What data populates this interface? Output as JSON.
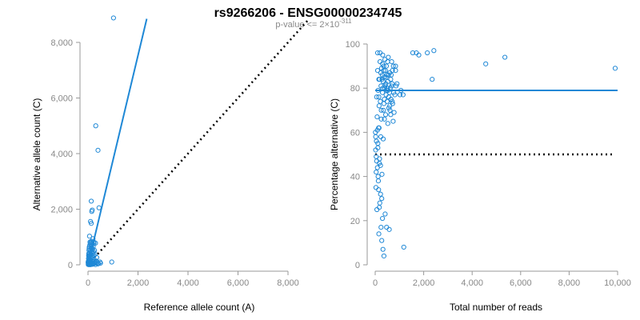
{
  "title": "rs9266206 - ENSG00000234745",
  "subtitle": {
    "prefix": "p-value <= 2×10",
    "exponent": "-311"
  },
  "colors": {
    "points": "#1f88d6",
    "fit": "#1f88d6",
    "reference": "#000000",
    "axis": "#999999",
    "ticklabel": "#888888"
  },
  "chart_data": [
    {
      "type": "scatter",
      "name": "left-panel",
      "xlabel": "Reference allele count (A)",
      "ylabel": "Alternative allele count (C)",
      "xlim": [
        0,
        8000
      ],
      "ylim": [
        0,
        8000
      ],
      "x_ticks": [
        0,
        2000,
        4000,
        6000,
        8000
      ],
      "y_ticks": [
        0,
        2000,
        4000,
        6000,
        8000
      ],
      "x_tick_labels": [
        "0",
        "2,000",
        "4,000",
        "6,000",
        "8,000"
      ],
      "y_tick_labels": [
        "0",
        "2,000",
        "4,000",
        "6,000",
        "8,000"
      ],
      "fit_line": {
        "x0": 0,
        "y0": 0,
        "x1": 2350,
        "y1": 8850
      },
      "reference_line": {
        "x0": 0,
        "y0": 0,
        "x1": 8850,
        "y1": 8850
      },
      "points": [
        [
          1020,
          8880
        ],
        [
          310,
          5000
        ],
        [
          400,
          4120
        ],
        [
          130,
          2290
        ],
        [
          440,
          2050
        ],
        [
          170,
          1970
        ],
        [
          150,
          1920
        ],
        [
          100,
          1560
        ],
        [
          130,
          1490
        ],
        [
          60,
          1030
        ],
        [
          200,
          940
        ],
        [
          140,
          850
        ],
        [
          80,
          820
        ],
        [
          110,
          800
        ],
        [
          230,
          820
        ],
        [
          170,
          790
        ],
        [
          240,
          780
        ],
        [
          300,
          780
        ],
        [
          90,
          750
        ],
        [
          150,
          700
        ],
        [
          50,
          640
        ],
        [
          210,
          650
        ],
        [
          120,
          600
        ],
        [
          180,
          560
        ],
        [
          40,
          520
        ],
        [
          260,
          520
        ],
        [
          90,
          490
        ],
        [
          150,
          460
        ],
        [
          70,
          430
        ],
        [
          200,
          420
        ],
        [
          30,
          400
        ],
        [
          120,
          380
        ],
        [
          180,
          350
        ],
        [
          60,
          340
        ],
        [
          240,
          330
        ],
        [
          100,
          310
        ],
        [
          40,
          290
        ],
        [
          160,
          270
        ],
        [
          80,
          250
        ],
        [
          20,
          230
        ],
        [
          130,
          220
        ],
        [
          60,
          200
        ],
        [
          200,
          190
        ],
        [
          30,
          170
        ],
        [
          100,
          160
        ],
        [
          160,
          150
        ],
        [
          50,
          130
        ],
        [
          80,
          120
        ],
        [
          120,
          110
        ],
        [
          20,
          100
        ],
        [
          60,
          90
        ],
        [
          140,
          80
        ],
        [
          250,
          70
        ],
        [
          330,
          60
        ],
        [
          30,
          60
        ],
        [
          90,
          50
        ],
        [
          170,
          45
        ],
        [
          40,
          35
        ],
        [
          110,
          30
        ],
        [
          200,
          25
        ],
        [
          60,
          20
        ],
        [
          20,
          15
        ],
        [
          140,
          15
        ],
        [
          80,
          10
        ],
        [
          300,
          10
        ],
        [
          400,
          30
        ],
        [
          500,
          60
        ],
        [
          260,
          120
        ],
        [
          350,
          90
        ],
        [
          40,
          5
        ],
        [
          100,
          5
        ],
        [
          15,
          40
        ],
        [
          10,
          120
        ],
        [
          25,
          330
        ],
        [
          45,
          580
        ],
        [
          70,
          700
        ],
        [
          160,
          600
        ],
        [
          220,
          470
        ],
        [
          280,
          380
        ],
        [
          350,
          260
        ],
        [
          330,
          140
        ],
        [
          420,
          50
        ],
        [
          480,
          100
        ],
        [
          950,
          100
        ],
        [
          10,
          10
        ],
        [
          5,
          80
        ],
        [
          180,
          20
        ],
        [
          230,
          40
        ]
      ]
    },
    {
      "type": "scatter",
      "name": "right-panel",
      "xlabel": "Total number of reads",
      "ylabel": "Percentage alternative (C)",
      "xlim": [
        0,
        10000
      ],
      "ylim": [
        0,
        100
      ],
      "x_ticks": [
        0,
        2000,
        4000,
        6000,
        8000,
        10000
      ],
      "y_ticks": [
        0,
        20,
        40,
        60,
        80,
        100
      ],
      "x_tick_labels": [
        "0",
        "2,000",
        "4,000",
        "6,000",
        "8,000",
        "10,000"
      ],
      "y_tick_labels": [
        "0",
        "20",
        "40",
        "60",
        "80",
        "100"
      ],
      "fit_line": {
        "x0": 0,
        "y0": 79,
        "x1": 10000,
        "y1": 79
      },
      "reference_line": {
        "x0": 0,
        "y0": 50,
        "x1": 9900,
        "y1": 50
      },
      "points": [
        [
          9900,
          89
        ],
        [
          5350,
          94
        ],
        [
          4560,
          91
        ],
        [
          2350,
          84
        ],
        [
          2420,
          97
        ],
        [
          2150,
          96
        ],
        [
          1800,
          95
        ],
        [
          1700,
          96
        ],
        [
          1550,
          96
        ],
        [
          1150,
          77
        ],
        [
          1060,
          79
        ],
        [
          1180,
          8
        ],
        [
          1020,
          77
        ],
        [
          900,
          82
        ],
        [
          860,
          81
        ],
        [
          840,
          90
        ],
        [
          840,
          88
        ],
        [
          810,
          77
        ],
        [
          780,
          69
        ],
        [
          760,
          78
        ],
        [
          750,
          90
        ],
        [
          740,
          65
        ],
        [
          720,
          73
        ],
        [
          710,
          88
        ],
        [
          700,
          82
        ],
        [
          680,
          92
        ],
        [
          660,
          86
        ],
        [
          650,
          75
        ],
        [
          640,
          84
        ],
        [
          620,
          80
        ],
        [
          610,
          70
        ],
        [
          600,
          87
        ],
        [
          590,
          78
        ],
        [
          580,
          16
        ],
        [
          560,
          71
        ],
        [
          550,
          86
        ],
        [
          540,
          94
        ],
        [
          530,
          79
        ],
        [
          520,
          64
        ],
        [
          510,
          92
        ],
        [
          500,
          80
        ],
        [
          490,
          74
        ],
        [
          480,
          86
        ],
        [
          470,
          17
        ],
        [
          460,
          90
        ],
        [
          450,
          77
        ],
        [
          440,
          82
        ],
        [
          430,
          68
        ],
        [
          420,
          88
        ],
        [
          410,
          23
        ],
        [
          400,
          93
        ],
        [
          390,
          80
        ],
        [
          380,
          75
        ],
        [
          370,
          85
        ],
        [
          360,
          4
        ],
        [
          350,
          90
        ],
        [
          340,
          70
        ],
        [
          330,
          83
        ],
        [
          320,
          7
        ],
        [
          310,
          95
        ],
        [
          300,
          78
        ],
        [
          290,
          86
        ],
        [
          280,
          41
        ],
        [
          270,
          11
        ],
        [
          260,
          89
        ],
        [
          250,
          66
        ],
        [
          240,
          81
        ],
        [
          230,
          58
        ],
        [
          220,
          32
        ],
        [
          210,
          74
        ],
        [
          200,
          92
        ],
        [
          190,
          28
        ],
        [
          180,
          84
        ],
        [
          170,
          46
        ],
        [
          160,
          72
        ],
        [
          150,
          14
        ],
        [
          140,
          62
        ],
        [
          130,
          38
        ],
        [
          120,
          79
        ],
        [
          110,
          53
        ],
        [
          100,
          88
        ],
        [
          90,
          44
        ],
        [
          80,
          67
        ],
        [
          70,
          25
        ],
        [
          60,
          76
        ],
        [
          50,
          56
        ],
        [
          40,
          49
        ],
        [
          30,
          35
        ],
        [
          20,
          52
        ],
        [
          10,
          60
        ],
        [
          100,
          96
        ],
        [
          200,
          96
        ],
        [
          300,
          91
        ],
        [
          350,
          88
        ],
        [
          150,
          76
        ],
        [
          250,
          70
        ],
        [
          330,
          57
        ],
        [
          160,
          62
        ],
        [
          180,
          48
        ],
        [
          220,
          45
        ],
        [
          270,
          30
        ],
        [
          300,
          21
        ],
        [
          240,
          17
        ],
        [
          170,
          26
        ],
        [
          140,
          34
        ],
        [
          120,
          40
        ],
        [
          110,
          55
        ],
        [
          90,
          61
        ],
        [
          60,
          47
        ],
        [
          40,
          42
        ],
        [
          20,
          58
        ],
        [
          150,
          84
        ],
        [
          230,
          87
        ],
        [
          280,
          84
        ],
        [
          310,
          80
        ],
        [
          360,
          73
        ],
        [
          380,
          66
        ],
        [
          410,
          81
        ],
        [
          450,
          85
        ],
        [
          480,
          79
        ],
        [
          520,
          83
        ],
        [
          560,
          76
        ],
        [
          600,
          72
        ],
        [
          640,
          68
        ],
        [
          680,
          81
        ],
        [
          700,
          74
        ]
      ]
    }
  ]
}
